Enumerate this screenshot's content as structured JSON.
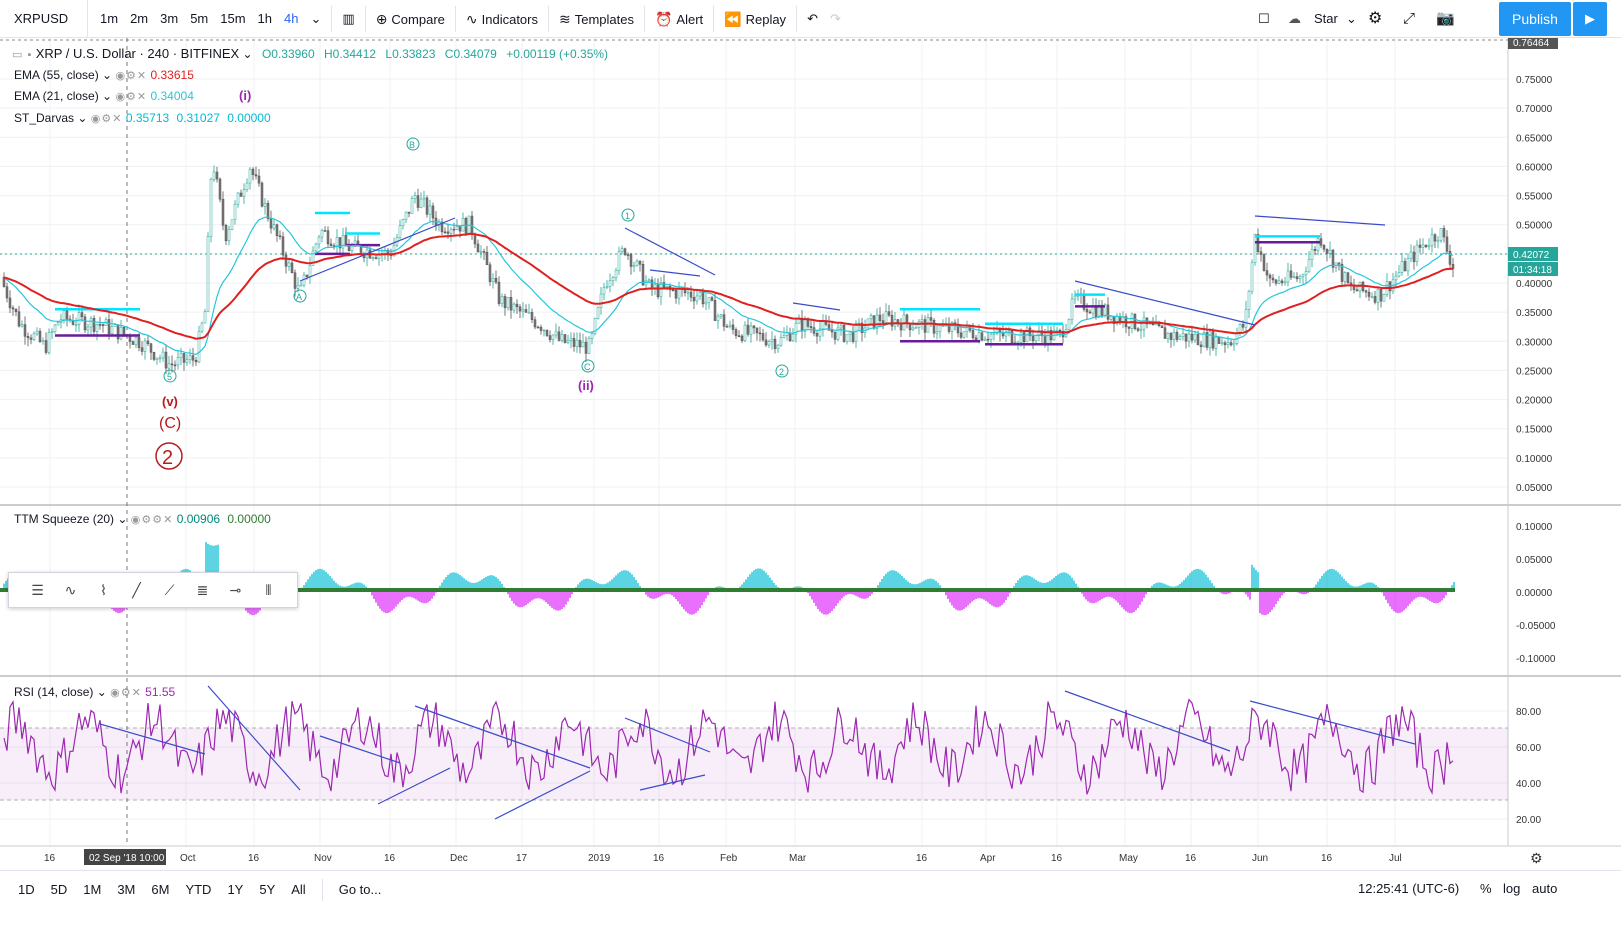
{
  "toolbar": {
    "symbol": "XRPUSD",
    "intervals": [
      "1m",
      "2m",
      "3m",
      "5m",
      "15m",
      "1h",
      "4h"
    ],
    "active_interval": "4h",
    "compare": "Compare",
    "indicators": "Indicators",
    "templates": "Templates",
    "alert": "Alert",
    "replay": "Replay",
    "star": "Star",
    "publish": "Publish"
  },
  "main_legend": {
    "title": "XRP / U.S. Dollar · 240 · BITFINEX",
    "open": "O0.33960",
    "high": "H0.34412",
    "low": "L0.33823",
    "close": "C0.34079",
    "change": "+0.00119 (+0.35%)",
    "ema55_label": "EMA (55, close)",
    "ema55_value": "0.33615",
    "ema21_label": "EMA (21, close)",
    "ema21_value": "0.34004",
    "darvas_label": "ST_Darvas",
    "darvas_v1": "0.35713",
    "darvas_v2": "0.31027",
    "darvas_v3": "0.00000"
  },
  "ttm_legend": {
    "label": "TTM Squeeze (20)",
    "v1": "0.00906",
    "v2": "0.00000"
  },
  "rsi_legend": {
    "label": "RSI (14, close)",
    "value": "51.55"
  },
  "price_axis": [
    "0.75000",
    "0.70000",
    "0.65000",
    "0.60000",
    "0.55000",
    "0.50000",
    "0.45000",
    "0.40000",
    "0.35000",
    "0.30000",
    "0.25000",
    "0.20000",
    "0.15000",
    "0.10000",
    "0.05000"
  ],
  "price_top": "0.76464",
  "price_current": "0.42072",
  "countdown": "01:34:18",
  "ttm_axis": [
    "0.10000",
    "0.05000",
    "0.00000",
    "-0.05000",
    "-0.10000"
  ],
  "rsi_axis": [
    "80.00",
    "60.00",
    "40.00",
    "20.00"
  ],
  "time_axis": [
    "16",
    "Oct",
    "16",
    "Nov",
    "16",
    "Dec",
    "17",
    "2019",
    "16",
    "Feb",
    "Mar",
    "16",
    "Apr",
    "16",
    "May",
    "16",
    "Jun",
    "16",
    "Jul"
  ],
  "crosshair_time": "02 Sep '18   10:00",
  "wave_labels": {
    "w_i": "(i)",
    "w_ii": "(ii)",
    "w_v": "(v)",
    "w_C": "(C)",
    "w_2": "2",
    "cA": "A",
    "cB": "B",
    "cC": "C",
    "c1": "1",
    "c2": "2",
    "c5": "5"
  },
  "bottom": {
    "ranges": [
      "1D",
      "5D",
      "1M",
      "3M",
      "6M",
      "YTD",
      "1Y",
      "5Y",
      "All"
    ],
    "goto": "Go to...",
    "clock": "12:25:41 (UTC-6)",
    "percent": "%",
    "log": "log",
    "auto": "auto"
  },
  "colors": {
    "ema55": "#e02020",
    "ema21": "#26c6da",
    "darvas_top": "#00e5ff",
    "darvas_bottom": "#7b1fa2",
    "rsi": "#9c27b0",
    "trend": "#3b4cca",
    "up": "#26a69a",
    "down": "#f06292"
  }
}
